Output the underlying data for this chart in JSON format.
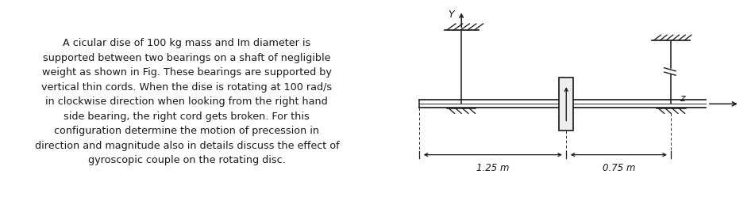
{
  "text_content": [
    "A cicular dise of 100 kg mass and Im diameter is",
    "supported between two bearings on a shaft of negligible",
    "weight as shown in Fig. These bearings are supported by",
    "vertical thin cords. When the dise is rotating at 100 rad/s",
    "in clockwise direction when looking from the right hand",
    "side bearing, the right cord gets broken. For this",
    "configuration determine the motion of precession in",
    "direction and magnitude also in details discuss the effect of",
    "gyroscopic couple on the rotating disc."
  ],
  "background_color": "#ffffff",
  "text_color": "#1a1a1a",
  "text_fontsize": 9.2,
  "diagram_label_Y": "Y",
  "diagram_label_Z": "z",
  "dim_label_left": "1.25 m",
  "dim_label_right": "0.75 m",
  "fig_width": 9.51,
  "fig_height": 2.68
}
